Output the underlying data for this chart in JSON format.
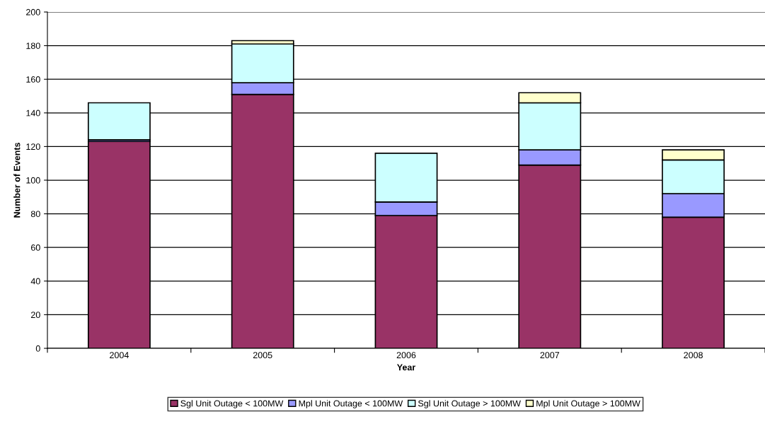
{
  "chart_data": {
    "type": "bar",
    "stacked": true,
    "xlabel": "Year",
    "ylabel": "Number of Events",
    "categories": [
      "2004",
      "2005",
      "2006",
      "2007",
      "2008"
    ],
    "series": [
      {
        "name": "Sgl Unit Outage < 100MW",
        "color": "#993366",
        "values": [
          123,
          151,
          79,
          109,
          78
        ]
      },
      {
        "name": "Mpl Unit Outage < 100MW",
        "color": "#9999ff",
        "values": [
          1,
          7,
          8,
          9,
          14
        ]
      },
      {
        "name": "Sgl Unit Outage > 100MW",
        "color": "#ccffff",
        "values": [
          22,
          23,
          29,
          28,
          20
        ]
      },
      {
        "name": "Mpl Unit Outage > 100MW",
        "color": "#ffffcc",
        "values": [
          null,
          2,
          null,
          6,
          6
        ]
      }
    ],
    "ylim": [
      0,
      200
    ],
    "yticks": [
      0,
      20,
      40,
      60,
      80,
      100,
      120,
      140,
      160,
      180,
      200
    ],
    "grid": "y",
    "legend": "bottom"
  }
}
